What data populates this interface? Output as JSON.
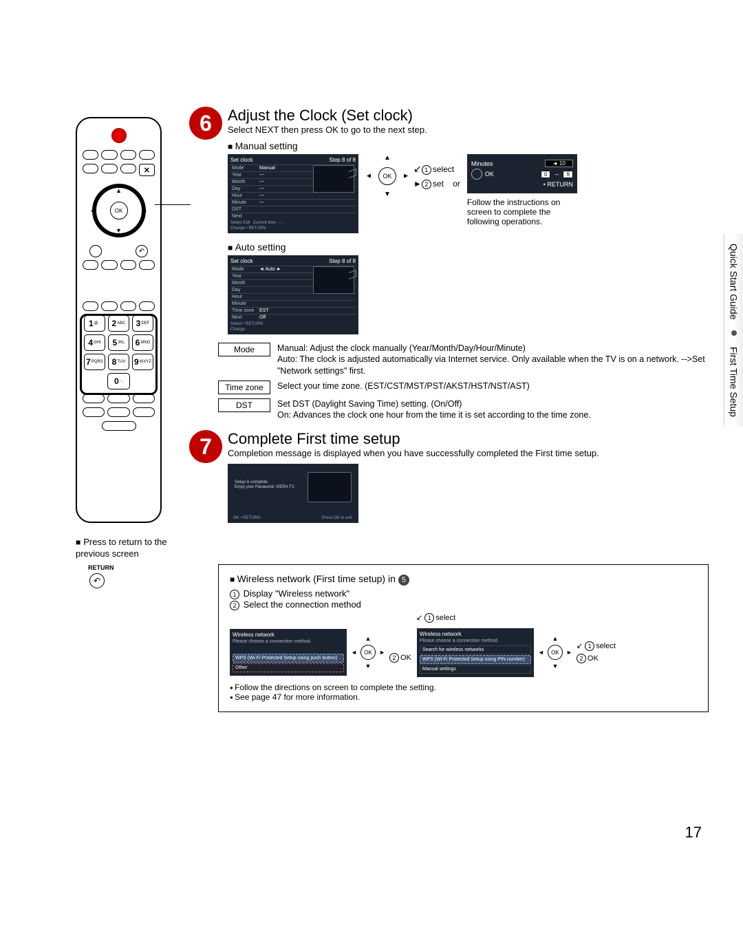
{
  "page_number": "17",
  "side_tab": {
    "line1": "Quick Start Guide",
    "line2": "First Time Setup"
  },
  "remote": {
    "ok_label": "OK",
    "keypad": [
      [
        {
          "n": "1",
          "s": "@ ."
        },
        {
          "n": "2",
          "s": "ABC"
        },
        {
          "n": "3",
          "s": "DEF"
        }
      ],
      [
        {
          "n": "4",
          "s": "GHI"
        },
        {
          "n": "5",
          "s": "JKL"
        },
        {
          "n": "6",
          "s": "MNO"
        }
      ],
      [
        {
          "n": "7",
          "s": "PQRS"
        },
        {
          "n": "8",
          "s": "TUV"
        },
        {
          "n": "9",
          "s": "WXYZ"
        }
      ]
    ],
    "zero": "0",
    "zero_sub": "- ,",
    "x_label": "✕",
    "caption_title": "Press to return to the previous screen",
    "return_label": "RETURN",
    "return_glyph": "↶"
  },
  "step6": {
    "badge": "6",
    "title": "Adjust the Clock (Set clock)",
    "subtitle": "Select NEXT then press OK to go to the next step.",
    "manual_heading": "Manual setting",
    "auto_heading": "Auto setting",
    "manual_panel": {
      "title": "Set clock",
      "step": "Step 8 of 8",
      "rows": [
        {
          "k": "Mode",
          "v": "Manual"
        },
        {
          "k": "Year",
          "v": "---"
        },
        {
          "k": "Month",
          "v": "---"
        },
        {
          "k": "Day",
          "v": "---"
        },
        {
          "k": "Hour",
          "v": "---"
        },
        {
          "k": "Minute",
          "v": "---"
        },
        {
          "k": "DST",
          "v": ""
        },
        {
          "k": "Next",
          "v": ""
        }
      ],
      "footer_left": "Select  Edit",
      "footer_right": "Current time  - - -",
      "footer_return": "Change     • RETURN"
    },
    "auto_panel": {
      "title": "Set clock",
      "step": "Step 8 of 8",
      "rows": [
        {
          "k": "Mode",
          "v": "◄  Auto  ►"
        },
        {
          "k": "Year",
          "v": ""
        },
        {
          "k": "Month",
          "v": ""
        },
        {
          "k": "Day",
          "v": ""
        },
        {
          "k": "Hour",
          "v": ""
        },
        {
          "k": "Minute",
          "v": ""
        },
        {
          "k": "Time zone",
          "v": "EST"
        },
        {
          "k": "Next",
          "v": "Off"
        }
      ],
      "footer_return": "Select     • RETURN",
      "footer_change": "Change"
    },
    "dpad": {
      "ok": "OK",
      "select_label": "select",
      "set_label": "set",
      "or_label": "or"
    },
    "minutes_box": {
      "label": "Minutes",
      "value": "10",
      "ok": "OK",
      "key0": "0",
      "key9": "9",
      "return": "• RETURN",
      "follow": "Follow the instructions on screen to complete the following operations."
    },
    "defs": {
      "mode_key": "Mode",
      "mode_val": "Manual: Adjust the clock manually (Year/Month/Day/Hour/Minute)\nAuto: The clock is adjusted automatically via Internet service. Only available when the TV is on a network. -->Set \"Network settings\" first.",
      "tz_key": "Time zone",
      "tz_val": "Select your time zone. (EST/CST/MST/PST/AKST/HST/NST/AST)",
      "dst_key": "DST",
      "dst_val": "Set DST (Daylight Saving Time) setting. (On/Off)\nOn: Advances the clock one hour from the time it is set according to the time zone."
    }
  },
  "step7": {
    "badge": "7",
    "title": "Complete First time setup",
    "subtitle": "Completion message is displayed when you have successfully completed the First time setup.",
    "panel": {
      "msg1": "Setup is complete.",
      "msg2": "Enjoy your Panasonic VIERA TV.",
      "footer_left": "OK  • RETURN",
      "footer_right": "Press OK to exit."
    }
  },
  "wireless": {
    "heading": "Wireless network (First time setup) in",
    "heading_badge": "5",
    "line1": "Display \"Wireless network\"",
    "line2": "Select the connection method",
    "select_label": "select",
    "ok_label": "OK",
    "panel_a": {
      "title": "Wireless network",
      "sub": "Please choose a connection method.",
      "opt1": "WPS (Wi-Fi Protected Setup using push button)",
      "opt2": "Other"
    },
    "panel_b": {
      "title": "Wireless network",
      "sub": "Please choose a connection method.",
      "opt1": "Search for wireless networks",
      "opt2": "WPS (Wi-Fi Protected Setup using PIN number)",
      "opt3": "Manual settings"
    },
    "bullet1": "Follow the directions on screen to complete the setting.",
    "bullet2": "See page 47 for more information."
  },
  "colors": {
    "red": "#c10000",
    "panel_bg": "#1c2330"
  }
}
